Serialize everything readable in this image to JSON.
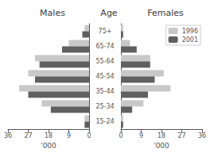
{
  "chart_data": [
    {
      "type": "bar",
      "orientation": "horizontal",
      "title": "Males",
      "xlabel": "'000",
      "categories": [
        "15-24",
        "25-34",
        "35-44",
        "45-54",
        "55-64",
        "65-74",
        "75+"
      ],
      "series": [
        {
          "name": "1996",
          "color": "#c8c8c8",
          "values": [
            2,
            21,
            31,
            27,
            24,
            9,
            2
          ]
        },
        {
          "name": "2001",
          "color": "#606060",
          "values": [
            2,
            17,
            27,
            24,
            22,
            12,
            3
          ]
        }
      ],
      "xlim": [
        36,
        0
      ],
      "xticks": [
        0,
        9,
        18,
        27,
        36
      ],
      "grid": false
    },
    {
      "type": "bar",
      "orientation": "horizontal",
      "title": "Females",
      "xlabel": "'000",
      "ylabel": "Age",
      "categories": [
        "15-24",
        "25-34",
        "35-44",
        "45-54",
        "55-64",
        "65-74",
        "75+"
      ],
      "series": [
        {
          "name": "1996",
          "color": "#c8c8c8",
          "values": [
            1,
            10,
            22,
            19,
            13,
            4,
            1
          ]
        },
        {
          "name": "2001",
          "color": "#606060",
          "values": [
            1,
            5,
            12,
            15,
            13,
            7,
            1
          ]
        }
      ],
      "xlim": [
        0,
        36
      ],
      "xticks": [
        0,
        9,
        18,
        27,
        36
      ],
      "grid": false,
      "legend": "upper right"
    }
  ]
}
